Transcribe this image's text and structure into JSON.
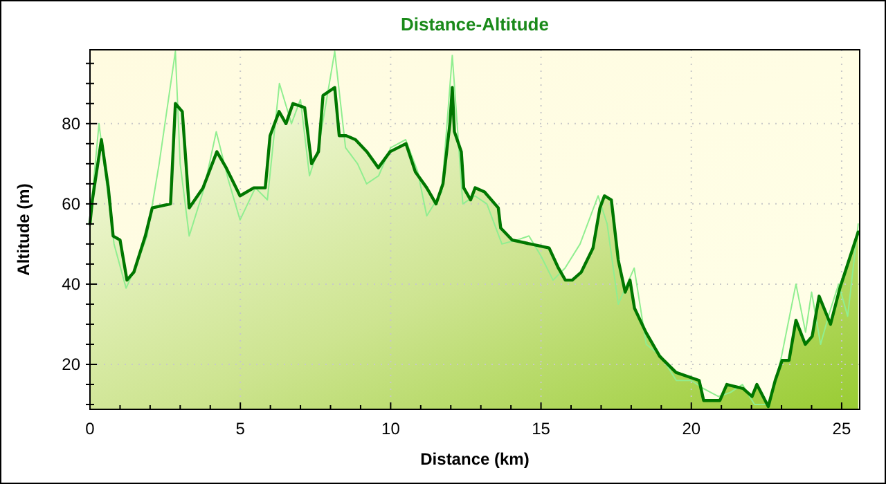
{
  "chart_data": {
    "type": "area",
    "title": "Distance-Altitude",
    "xlabel": "Distance (km)",
    "ylabel": "Altitude (m)",
    "xlim": [
      0,
      25.6
    ],
    "ylim": [
      8.8,
      98.4
    ],
    "xticks": [
      0,
      {
        "value": 1,
        "label": null
      },
      {
        "value": 2,
        "label": null
      },
      {
        "value": 3,
        "label": null
      },
      {
        "value": 4,
        "label": null
      },
      5,
      {
        "value": 6,
        "label": null
      },
      {
        "value": 7,
        "label": null
      },
      {
        "value": 8,
        "label": null
      },
      {
        "value": 9,
        "label": null
      },
      10,
      {
        "value": 11,
        "label": null
      },
      {
        "value": 12,
        "label": null
      },
      {
        "value": 13,
        "label": null
      },
      {
        "value": 14,
        "label": null
      },
      15,
      {
        "value": 16,
        "label": null
      },
      {
        "value": 17,
        "label": null
      },
      {
        "value": 18,
        "label": null
      },
      {
        "value": 19,
        "label": null
      },
      20,
      {
        "value": 21,
        "label": null
      },
      {
        "value": 22,
        "label": null
      },
      {
        "value": 23,
        "label": null
      },
      {
        "value": 24,
        "label": null
      },
      25
    ],
    "yticks": [
      {
        "value": 10,
        "label": null
      },
      {
        "value": 15,
        "label": null
      },
      20,
      {
        "value": 25,
        "label": null
      },
      {
        "value": 30,
        "label": null
      },
      {
        "value": 35,
        "label": null
      },
      40,
      {
        "value": 45,
        "label": null
      },
      {
        "value": 50,
        "label": null
      },
      {
        "value": 55,
        "label": null
      },
      60,
      {
        "value": 65,
        "label": null
      },
      {
        "value": 70,
        "label": null
      },
      {
        "value": 75,
        "label": null
      },
      80,
      {
        "value": 85,
        "label": null
      },
      {
        "value": 90,
        "label": null
      },
      {
        "value": 95,
        "label": null
      }
    ],
    "grid": true,
    "legend": false,
    "series": [
      {
        "type": "line",
        "color": "#90ee90",
        "x": [
          0,
          0.3,
          0.6,
          0.8,
          1.2,
          1.5,
          1.9,
          2.3,
          2.84,
          3.0,
          3.3,
          3.8,
          4.2,
          4.6,
          4.99,
          5.5,
          5.9,
          6.3,
          6.7,
          7.0,
          7.3,
          7.6,
          8.14,
          8.5,
          8.9,
          9.2,
          9.6,
          10.0,
          10.5,
          10.9,
          11.2,
          11.7,
          12.05,
          12.4,
          12.8,
          13.2,
          13.7,
          14.2,
          14.6,
          15.0,
          15.4,
          15.8,
          16.3,
          16.9,
          17.2,
          17.57,
          18.1,
          18.5,
          19.0,
          19.5,
          20.0,
          20.4,
          20.9,
          21.3,
          21.7,
          22.1,
          22.6,
          23.0,
          23.48,
          23.8,
          24.0,
          24.3,
          24.6,
          24.9,
          25.2,
          25.55
        ],
        "values": [
          56,
          80,
          62,
          50,
          39,
          44,
          52,
          70,
          98,
          70,
          52,
          64,
          78,
          66,
          56,
          64,
          61,
          90,
          80,
          86,
          67,
          74,
          98,
          74,
          70,
          65,
          67,
          74,
          76,
          68,
          57,
          63,
          97,
          60,
          62,
          60,
          50,
          51,
          52,
          47,
          41,
          44,
          50,
          62,
          55,
          35,
          44,
          25,
          22,
          16,
          16,
          14,
          12,
          13,
          15,
          10,
          10,
          22,
          40,
          28,
          38,
          25,
          33,
          40,
          32,
          55
        ]
      },
      {
        "color": "#007700",
        "x": [
          0,
          0.08,
          0.38,
          0.61,
          0.77,
          1.0,
          1.23,
          1.46,
          1.84,
          2.07,
          2.68,
          2.84,
          3.07,
          3.3,
          3.76,
          4.22,
          4.53,
          4.99,
          5.45,
          5.83,
          5.99,
          6.29,
          6.52,
          6.75,
          7.14,
          7.37,
          7.6,
          7.75,
          8.14,
          8.29,
          8.52,
          8.83,
          9.21,
          9.59,
          9.98,
          10.51,
          10.82,
          11.2,
          11.51,
          11.74,
          11.97,
          12.05,
          12.12,
          12.35,
          12.43,
          12.66,
          12.81,
          13.12,
          13.58,
          13.66,
          14.04,
          14.65,
          15.27,
          15.58,
          15.81,
          16.04,
          16.34,
          16.73,
          16.96,
          17.11,
          17.34,
          17.57,
          17.8,
          17.96,
          18.11,
          18.49,
          18.95,
          19.49,
          20.26,
          20.41,
          20.95,
          21.18,
          21.72,
          22.02,
          22.18,
          22.56,
          22.79,
          23.02,
          23.25,
          23.48,
          23.79,
          24.02,
          24.25,
          24.63,
          24.94,
          25.55
        ],
        "values": [
          55,
          61,
          76,
          64,
          52,
          51,
          41,
          43,
          52,
          59,
          60,
          85,
          83,
          59,
          64,
          73,
          69,
          62,
          64,
          64,
          77,
          83,
          80,
          85,
          84,
          70,
          73,
          87,
          89,
          77,
          77,
          76,
          73,
          69,
          73,
          75,
          68,
          64,
          60,
          65,
          80,
          89,
          78,
          73,
          64,
          61,
          64,
          63,
          59,
          54,
          51,
          50,
          49,
          44,
          41,
          41,
          43,
          49,
          59,
          62,
          61,
          46,
          38,
          41,
          34,
          28,
          22,
          18,
          16,
          11,
          11,
          15,
          14,
          12,
          15,
          9.5,
          16,
          21,
          21,
          31,
          25,
          27,
          37,
          30,
          39,
          53
        ]
      }
    ]
  }
}
